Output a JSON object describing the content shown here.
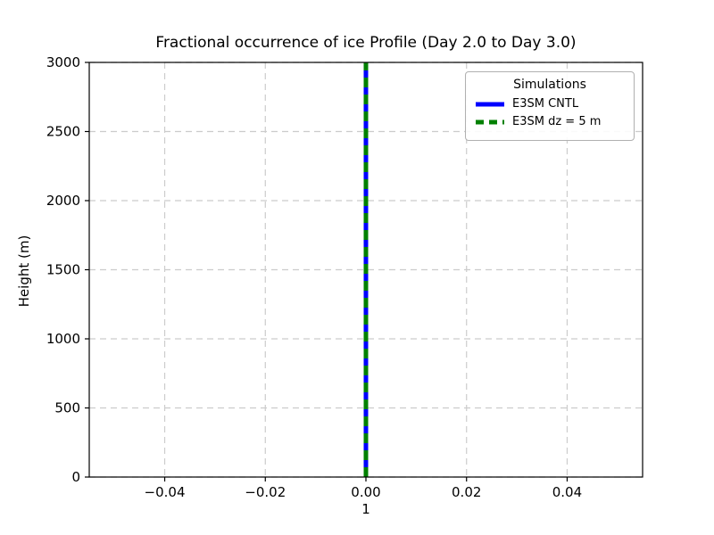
{
  "chart_data": {
    "type": "line",
    "title": "Fractional occurrence of ice Profile (Day 2.0 to Day 3.0)",
    "xlabel": "1",
    "ylabel": "Height (m)",
    "xlim": [
      -0.055,
      0.055
    ],
    "ylim": [
      0,
      3000
    ],
    "grid": true,
    "grid_color": "#cccccc",
    "grid_style": "dashed",
    "xtick_values": [
      -0.04,
      -0.02,
      0.0,
      0.02,
      0.04
    ],
    "xtick_labels": [
      "−0.04",
      "−0.02",
      "0.00",
      "0.02",
      "0.04"
    ],
    "ytick_values": [
      0,
      500,
      1000,
      1500,
      2000,
      2500,
      3000
    ],
    "ytick_labels": [
      "0",
      "500",
      "1000",
      "1500",
      "2000",
      "2500",
      "3000"
    ],
    "legend": {
      "title": "Simulations",
      "position": "upper right",
      "entries": [
        {
          "name": "E3SM CNTL",
          "color": "#0000ff",
          "style": "solid",
          "width": 5
        },
        {
          "name": "E3SM dz = 5 m",
          "color": "#008000",
          "style": "dashed",
          "width": 5
        }
      ]
    },
    "series": [
      {
        "name": "E3SM CNTL",
        "color": "#0000ff",
        "style": "solid",
        "width": 5,
        "x": [
          0.0,
          0.0
        ],
        "y": [
          0,
          3000
        ]
      },
      {
        "name": "E3SM dz = 5 m",
        "color": "#008000",
        "style": "dashed",
        "width": 5,
        "x": [
          0.0,
          0.0
        ],
        "y": [
          0,
          3000
        ]
      }
    ]
  }
}
